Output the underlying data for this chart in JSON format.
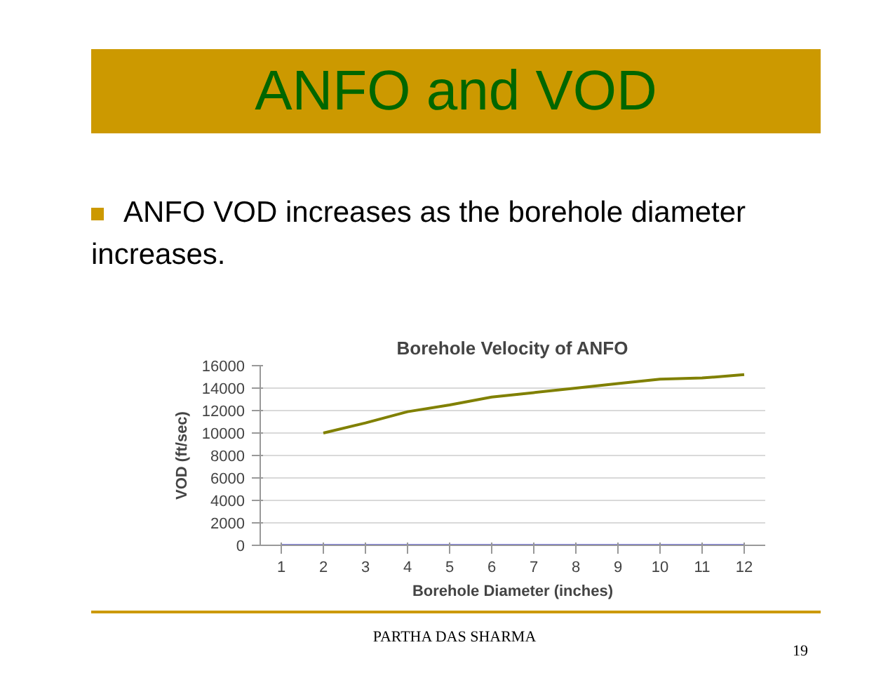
{
  "chart_data": {
    "type": "line",
    "title": "Borehole Velocity of ANFO",
    "xlabel": "Borehole Diameter (inches)",
    "ylabel": "VOD (ft/sec)",
    "categories": [
      "1",
      "2",
      "3",
      "4",
      "5",
      "6",
      "7",
      "8",
      "9",
      "10",
      "11",
      "12"
    ],
    "series": [
      {
        "color": "#808000",
        "values": [
          null,
          10000,
          10900,
          11900,
          12500,
          13200,
          13600,
          14000,
          14400,
          14800,
          14900,
          15200
        ]
      },
      {
        "color": "#8080e0",
        "values": [
          0,
          0,
          0,
          0,
          0,
          0,
          0,
          0,
          0,
          0,
          0,
          0
        ]
      }
    ],
    "ylim": [
      0,
      16000
    ],
    "yticks": [
      0,
      2000,
      4000,
      6000,
      8000,
      10000,
      12000,
      14000,
      16000
    ],
    "grid": "y",
    "marker": "none",
    "line_style": "solid",
    "annotations": [
      "ANFO and VOD",
      "ANFO VOD increases as the borehole diameter increases.",
      "PARTHA DAS SHARMA",
      "19"
    ]
  }
}
